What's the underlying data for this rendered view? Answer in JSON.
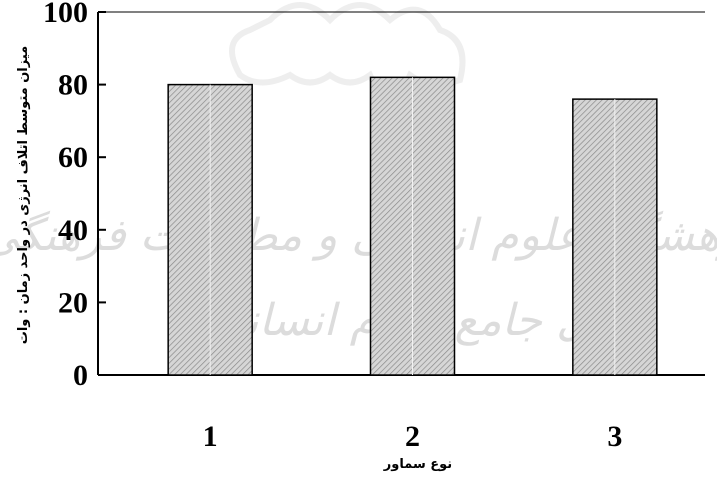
{
  "chart_data": {
    "type": "bar",
    "categories": [
      "1",
      "2",
      "3"
    ],
    "values": [
      80,
      82,
      76
    ],
    "xlabel": "نوع سماور",
    "ylabel": "میزان متوسط اتلاف انرژی در واحد زمان : وات",
    "ylim": [
      0,
      100
    ],
    "yticks": [
      "0",
      "20",
      "40",
      "60",
      "80",
      "100"
    ],
    "grid": false,
    "bar_fill": "hatched-gray"
  },
  "watermark": {
    "line1": "پژوهشگاه علوم انسانی و مطالعات فرهنگی",
    "line2": "پرتال جامع علوم انسانی"
  },
  "colors": {
    "bar_fill": "#d0d0d0",
    "hatch": "#8a8a8a",
    "axis": "#000000",
    "watermark": "#dcdcdc"
  }
}
